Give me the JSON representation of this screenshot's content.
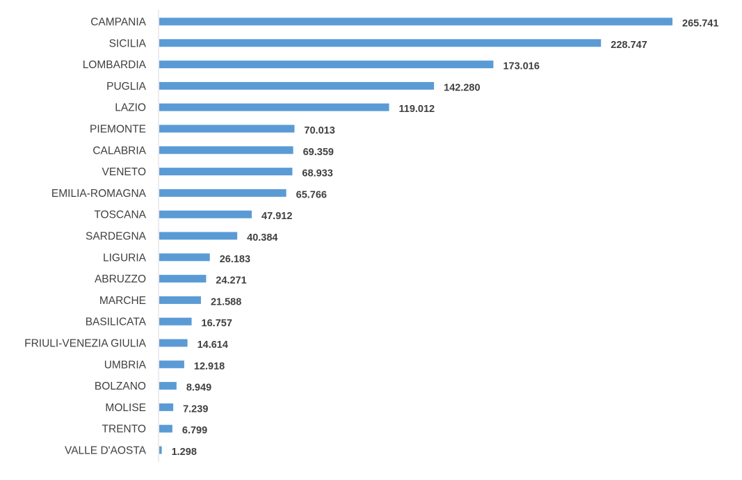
{
  "colors": {
    "bar": "#5b9bd5",
    "axis": "#d9d9d9",
    "text": "#404040"
  },
  "chart_data": {
    "type": "bar",
    "orientation": "horizontal",
    "title": "",
    "xlabel": "",
    "ylabel": "",
    "grid": false,
    "legend": "none",
    "xlim": [
      0,
      265741
    ],
    "categories": [
      "CAMPANIA",
      "SICILIA",
      "LOMBARDIA",
      "PUGLIA",
      "LAZIO",
      "PIEMONTE",
      "CALABRIA",
      "VENETO",
      "EMILIA-ROMAGNA",
      "TOSCANA",
      "SARDEGNA",
      "LIGURIA",
      "ABRUZZO",
      "MARCHE",
      "BASILICATA",
      "FRIULI-VENEZIA GIULIA",
      "UMBRIA",
      "BOLZANO",
      "MOLISE",
      "TRENTO",
      "VALLE D'AOSTA"
    ],
    "values": [
      265741,
      228747,
      173016,
      142280,
      119012,
      70013,
      69359,
      68933,
      65766,
      47912,
      40384,
      26183,
      24271,
      21588,
      16757,
      14614,
      12918,
      8949,
      7239,
      6799,
      1298
    ],
    "value_labels": [
      "265.741",
      "228.747",
      "173.016",
      "142.280",
      "119.012",
      "70.013",
      "69.359",
      "68.933",
      "65.766",
      "47.912",
      "40.384",
      "26.183",
      "24.271",
      "21.588",
      "16.757",
      "14.614",
      "12.918",
      "8.949",
      "7.239",
      "6.799",
      "1.298"
    ]
  }
}
